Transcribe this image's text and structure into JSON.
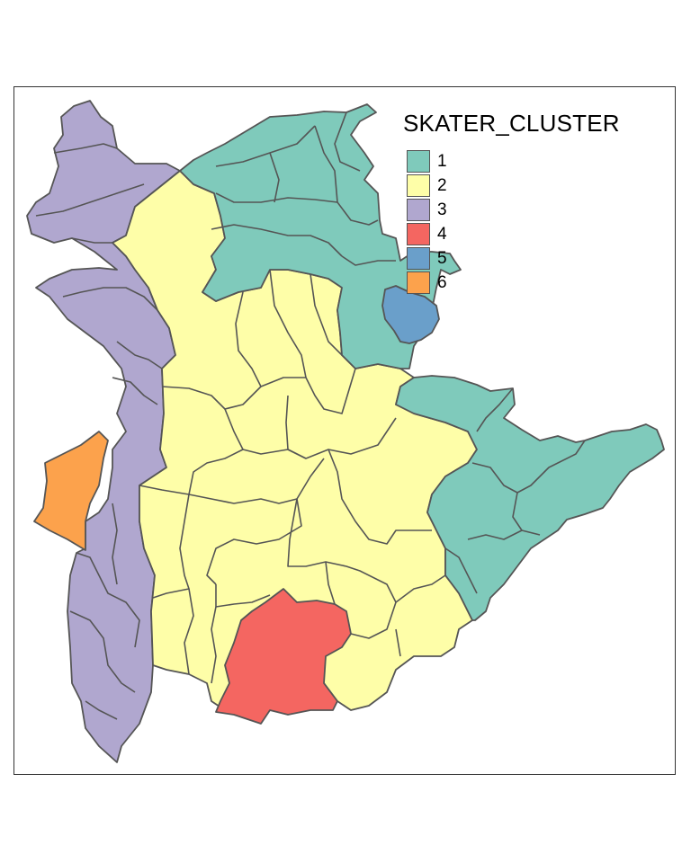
{
  "legend": {
    "title": "SKATER_CLUSTER",
    "items": [
      {
        "label": "1",
        "color": "#7FCABB"
      },
      {
        "label": "2",
        "color": "#FEFEA8"
      },
      {
        "label": "3",
        "color": "#B0A7CF"
      },
      {
        "label": "4",
        "color": "#F46661"
      },
      {
        "label": "5",
        "color": "#6A9FCA"
      },
      {
        "label": "6",
        "color": "#FCA24C"
      }
    ]
  },
  "colors": {
    "region_border": "#555555",
    "frame_border": "#333333"
  }
}
